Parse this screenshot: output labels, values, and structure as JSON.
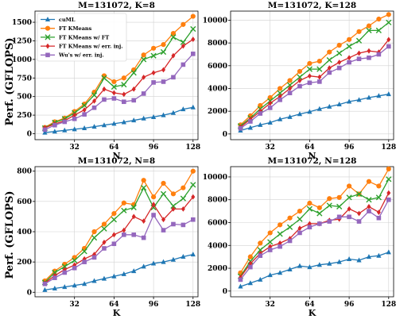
{
  "colors": {
    "cuml": "#1f77b4",
    "ft_kmeans": "#ff7f0e",
    "ft_kmeans_ft": "#2ca02c",
    "ft_kmeans_err": "#d62728",
    "wu_err": "#9467bd"
  },
  "legend": {
    "placement": "upper-left",
    "panel": 0,
    "entries": [
      "cuML",
      "FT KMeans",
      "FT KMeans w/ FT",
      "FT KMeans w/ err. inj.",
      "Wu's w/ err. inj."
    ]
  },
  "ylabel_top": "Perf. (GFLOPS)",
  "ylabel_bottom": "Perf. (GFLOPS)",
  "chart_data": [
    {
      "type": "line",
      "title": "M=131072, K=8",
      "xlabel": "N",
      "ylabel": "Perf. (GFLOPS)",
      "xlim": [
        0,
        132
      ],
      "ylim": [
        -80,
        1650
      ],
      "xticks": [
        32,
        64,
        96,
        128
      ],
      "yticks": [
        0,
        250,
        500,
        750,
        1000,
        1250,
        1500
      ],
      "grid": true,
      "x": [
        8,
        16,
        24,
        32,
        40,
        48,
        56,
        64,
        72,
        80,
        88,
        96,
        104,
        112,
        120,
        128
      ],
      "series": [
        {
          "name": "cuML",
          "marker": "triangle",
          "values": [
            15,
            30,
            45,
            60,
            75,
            95,
            115,
            135,
            155,
            180,
            205,
            225,
            250,
            280,
            330,
            355
          ]
        },
        {
          "name": "FT KMeans",
          "marker": "circle",
          "values": [
            85,
            160,
            210,
            300,
            400,
            560,
            780,
            700,
            750,
            860,
            1060,
            1150,
            1200,
            1350,
            1470,
            1580
          ]
        },
        {
          "name": "FT KMeans w/ FT",
          "marker": "x",
          "values": [
            75,
            150,
            200,
            280,
            380,
            520,
            750,
            630,
            660,
            820,
            1000,
            1050,
            1100,
            1300,
            1230,
            1410
          ]
        },
        {
          "name": "FT KMeans w/ err. inj.",
          "marker": "diamond",
          "values": [
            80,
            130,
            175,
            250,
            320,
            440,
            600,
            550,
            530,
            600,
            760,
            820,
            860,
            1050,
            1180,
            1270
          ]
        },
        {
          "name": "Wu's w/ err. inj.",
          "marker": "square",
          "values": [
            55,
            115,
            160,
            200,
            260,
            350,
            460,
            475,
            430,
            450,
            540,
            690,
            700,
            760,
            930,
            1075
          ]
        }
      ]
    },
    {
      "type": "line",
      "title": "M=131072, K=128",
      "xlabel": "N",
      "ylabel": "",
      "xlim": [
        0,
        132
      ],
      "ylim": [
        -500,
        10800
      ],
      "xticks": [
        32,
        64,
        96,
        128
      ],
      "yticks": [
        0,
        2000,
        4000,
        6000,
        8000,
        10000
      ],
      "grid": true,
      "x": [
        8,
        16,
        24,
        32,
        40,
        48,
        56,
        64,
        72,
        80,
        88,
        96,
        104,
        112,
        120,
        128
      ],
      "series": [
        {
          "name": "cuML",
          "marker": "triangle",
          "values": [
            300,
            550,
            800,
            1000,
            1300,
            1500,
            1750,
            1950,
            2200,
            2400,
            2600,
            2850,
            3000,
            3200,
            3350,
            3500
          ]
        },
        {
          "name": "FT KMeans",
          "marker": "circle",
          "values": [
            800,
            1600,
            2500,
            3200,
            4000,
            4700,
            5500,
            6200,
            6400,
            7200,
            7800,
            8300,
            9000,
            9500,
            10100,
            10500
          ]
        },
        {
          "name": "FT KMeans w/ FT",
          "marker": "x",
          "values": [
            700,
            1400,
            2200,
            2900,
            3600,
            4300,
            5000,
            5700,
            5700,
            6500,
            7100,
            7700,
            8200,
            9100,
            9100,
            9800
          ]
        },
        {
          "name": "FT KMeans w/ err. inj.",
          "marker": "diamond",
          "values": [
            600,
            1300,
            2000,
            2700,
            3300,
            4000,
            4700,
            5100,
            5000,
            5800,
            6300,
            6700,
            7100,
            7300,
            7200,
            8300
          ]
        },
        {
          "name": "Wu's w/ err. inj.",
          "marker": "square",
          "values": [
            500,
            1100,
            1800,
            2300,
            3000,
            3600,
            4200,
            4500,
            4600,
            5400,
            5800,
            6300,
            6600,
            6700,
            7000,
            7700
          ]
        }
      ]
    },
    {
      "type": "line",
      "title": "M=131072, N=8",
      "xlabel": "K",
      "ylabel": "Perf. (GFLOPS)",
      "xlim": [
        0,
        132
      ],
      "ylim": [
        -30,
        830
      ],
      "xticks": [
        32,
        64,
        96,
        128
      ],
      "yticks": [
        0,
        200,
        400,
        600,
        800
      ],
      "grid": true,
      "x": [
        8,
        16,
        24,
        32,
        40,
        48,
        56,
        64,
        72,
        80,
        88,
        96,
        104,
        112,
        120,
        128
      ],
      "series": [
        {
          "name": "cuML",
          "marker": "triangle",
          "values": [
            15,
            25,
            35,
            45,
            55,
            75,
            90,
            105,
            120,
            140,
            170,
            190,
            200,
            215,
            235,
            250
          ]
        },
        {
          "name": "FT KMeans",
          "marker": "circle",
          "values": [
            75,
            140,
            185,
            230,
            290,
            400,
            450,
            520,
            590,
            580,
            740,
            630,
            720,
            650,
            690,
            800
          ]
        },
        {
          "name": "FT KMeans w/ FT",
          "marker": "x",
          "values": [
            65,
            130,
            170,
            210,
            270,
            360,
            420,
            480,
            540,
            560,
            690,
            560,
            650,
            570,
            620,
            710
          ]
        },
        {
          "name": "FT KMeans w/ err. inj.",
          "marker": "diamond",
          "values": [
            60,
            110,
            150,
            180,
            220,
            250,
            330,
            380,
            410,
            500,
            470,
            580,
            480,
            550,
            550,
            630
          ]
        },
        {
          "name": "Wu's w/ err. inj.",
          "marker": "square",
          "values": [
            55,
            95,
            130,
            160,
            200,
            230,
            290,
            320,
            380,
            380,
            360,
            510,
            410,
            450,
            445,
            480
          ]
        }
      ]
    },
    {
      "type": "line",
      "title": "M=131072, N=128",
      "xlabel": "K",
      "ylabel": "",
      "xlim": [
        0,
        132
      ],
      "ylim": [
        -500,
        10900
      ],
      "xticks": [
        32,
        64,
        96,
        128
      ],
      "yticks": [
        0,
        2000,
        4000,
        6000,
        8000,
        10000
      ],
      "grid": true,
      "x": [
        8,
        16,
        24,
        32,
        40,
        48,
        56,
        64,
        72,
        80,
        88,
        96,
        104,
        112,
        120,
        128
      ],
      "series": [
        {
          "name": "cuML",
          "marker": "triangle",
          "values": [
            400,
            700,
            1000,
            1400,
            1600,
            1900,
            2200,
            2100,
            2300,
            2400,
            2550,
            2800,
            2700,
            3000,
            3100,
            3400
          ]
        },
        {
          "name": "FT KMeans",
          "marker": "circle",
          "values": [
            1600,
            3000,
            4200,
            5100,
            5800,
            6400,
            7000,
            7700,
            7300,
            8100,
            8200,
            9200,
            8500,
            9600,
            9200,
            10700
          ]
        },
        {
          "name": "FT KMeans w/ FT",
          "marker": "x",
          "values": [
            1300,
            2600,
            3600,
            4300,
            5000,
            5600,
            6300,
            7200,
            6800,
            7500,
            7400,
            8200,
            8500,
            8000,
            8200,
            9800
          ]
        },
        {
          "name": "FT KMeans w/ err. inj.",
          "marker": "diamond",
          "values": [
            1200,
            2400,
            3300,
            3900,
            4200,
            4600,
            5500,
            5900,
            5900,
            6200,
            6300,
            7200,
            6800,
            7400,
            6900,
            8600
          ]
        },
        {
          "name": "Wu's w/ err. inj.",
          "marker": "square",
          "values": [
            1000,
            2100,
            3100,
            3600,
            3900,
            4400,
            5100,
            5600,
            5900,
            6100,
            6500,
            6500,
            6100,
            7000,
            6400,
            8000
          ]
        }
      ]
    }
  ]
}
